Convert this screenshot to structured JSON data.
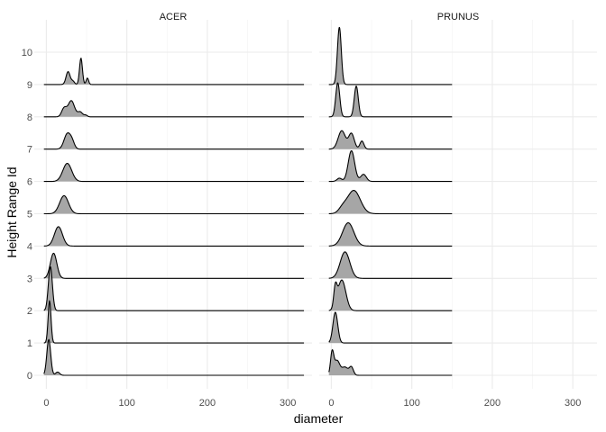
{
  "chart_data": {
    "type": "ridgeline",
    "xlabel": "diameter",
    "ylabel": "Height Range Id",
    "x_ticks": [
      0,
      100,
      200,
      300
    ],
    "x_tick_labels": [
      "0",
      "100",
      "200",
      "300"
    ],
    "xlim": [
      -15,
      330
    ],
    "y_levels": [
      0,
      1,
      2,
      3,
      4,
      5,
      6,
      7,
      8,
      9,
      10
    ],
    "y_tick_labels": [
      "0",
      "1",
      "2",
      "3",
      "4",
      "5",
      "6",
      "7",
      "8",
      "9",
      "10"
    ],
    "grid": true,
    "fill_color": "#a6a6a6",
    "line_color": "#000000",
    "panels": [
      {
        "name": "ACER",
        "x_range": [
          -3,
          320
        ],
        "ridges": [
          {
            "level": 0,
            "peaks": [
              [
                3,
                2.4,
                1.11
              ],
              [
                14,
                2.5,
                0.1
              ]
            ]
          },
          {
            "level": 1,
            "peaks": [
              [
                4,
                1.8,
                1.31
              ]
            ]
          },
          {
            "level": 2,
            "peaks": [
              [
                5,
                2.5,
                1.37
              ]
            ]
          },
          {
            "level": 3,
            "peaks": [
              [
                9,
                4,
                0.78
              ]
            ]
          },
          {
            "level": 4,
            "peaks": [
              [
                15,
                5,
                0.6
              ]
            ]
          },
          {
            "level": 5,
            "peaks": [
              [
                22,
                5.5,
                0.56
              ]
            ]
          },
          {
            "level": 6,
            "peaks": [
              [
                26,
                5.5,
                0.56
              ]
            ]
          },
          {
            "level": 7,
            "peaks": [
              [
                26,
                4,
                0.47
              ],
              [
                32,
                3,
                0.2
              ]
            ]
          },
          {
            "level": 8,
            "peaks": [
              [
                22,
                3,
                0.26
              ],
              [
                31,
                4,
                0.5
              ],
              [
                42,
                3,
                0.15
              ],
              [
                49,
                2,
                0.05
              ]
            ]
          },
          {
            "level": 9,
            "peaks": [
              [
                27,
                2.5,
                0.4
              ],
              [
                33,
                2,
                0.1
              ],
              [
                43,
                1.8,
                0.82
              ],
              [
                51,
                1.5,
                0.2
              ]
            ]
          }
        ]
      },
      {
        "name": "PRUNUS",
        "x_range": [
          -3,
          150
        ],
        "ridges": [
          {
            "level": 0,
            "peaks": [
              [
                1,
                2,
                0.68
              ],
              [
                7,
                3.5,
                0.45
              ],
              [
                17,
                4,
                0.25
              ],
              [
                25,
                2.5,
                0.24
              ]
            ]
          },
          {
            "level": 1,
            "peaks": [
              [
                5,
                3,
                0.95
              ]
            ]
          },
          {
            "level": 2,
            "peaks": [
              [
                5,
                2,
                0.6
              ],
              [
                13,
                5,
                0.95
              ]
            ]
          },
          {
            "level": 3,
            "peaks": [
              [
                17,
                6,
                0.82
              ]
            ]
          },
          {
            "level": 4,
            "peaks": [
              [
                21,
                7,
                0.72
              ]
            ]
          },
          {
            "level": 5,
            "peaks": [
              [
                28,
                8,
                0.72
              ],
              [
                14,
                5,
                0.15
              ]
            ]
          },
          {
            "level": 6,
            "peaks": [
              [
                25,
                4,
                0.95
              ],
              [
                40,
                3.5,
                0.22
              ],
              [
                10,
                3,
                0.1
              ]
            ]
          },
          {
            "level": 7,
            "peaks": [
              [
                13,
                4.5,
                0.57
              ],
              [
                25,
                3.5,
                0.48
              ],
              [
                38,
                2.5,
                0.25
              ]
            ]
          },
          {
            "level": 8,
            "peaks": [
              [
                8,
                2.5,
                1.05
              ],
              [
                31,
                2.5,
                0.95
              ]
            ]
          },
          {
            "level": 9,
            "peaks": [
              [
                10,
                2.4,
                1.77
              ]
            ]
          }
        ]
      }
    ]
  }
}
